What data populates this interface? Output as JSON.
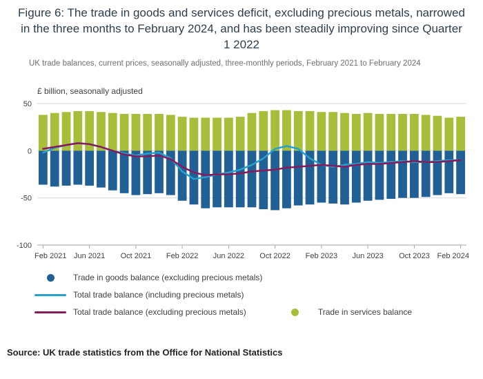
{
  "title": "Figure 6: The trade in goods and services deficit, excluding precious metals, narrowed in the three months to February 2024, and has been steadily improving since Quarter 1 2022",
  "subtitle": "UK trade balances, current prices, seasonally adjusted, three-monthly periods, February 2021 to February 2024",
  "source": "Source: UK trade statistics from the Office for National Statistics",
  "colors": {
    "goods_bar": "#206095",
    "services_bar": "#a8bd3a",
    "total_including": "#27a0cc",
    "total_excluding": "#871a5b",
    "gridline": "#d9d9d9",
    "axis": "#a6a6a6",
    "text": "#414042"
  },
  "legend": [
    {
      "label": "Trade in goods balance (excluding precious metals)",
      "marker": "dot",
      "color": "#206095"
    },
    {
      "label": "Total trade balance (including precious metals)",
      "marker": "line",
      "color": "#27a0cc"
    },
    {
      "label": "Total trade balance (excluding precious metals)",
      "marker": "line",
      "color": "#871a5b"
    },
    {
      "label": "Trade in services balance",
      "marker": "dot",
      "color": "#a8bd3a"
    }
  ],
  "chart_data": {
    "type": "bar",
    "title": "Figure 6: The trade in goods and services deficit, excluding precious metals, narrowed in the three months to February 2024, and has been steadily improving since Quarter 1 2022",
    "ylabel": "£ billion, seasonally adjusted",
    "ylim": [
      -100,
      50
    ],
    "yticks": [
      50,
      0,
      -50,
      -100
    ],
    "grid": "horizontal",
    "legend_position": "bottom",
    "x": [
      "Feb 2021",
      "Mar 2021",
      "Apr 2021",
      "May 2021",
      "Jun 2021",
      "Jul 2021",
      "Aug 2021",
      "Sep 2021",
      "Oct 2021",
      "Nov 2021",
      "Dec 2021",
      "Jan 2022",
      "Feb 2022",
      "Mar 2022",
      "Apr 2022",
      "May 2022",
      "Jun 2022",
      "Jul 2022",
      "Aug 2022",
      "Sep 2022",
      "Oct 2022",
      "Nov 2022",
      "Dec 2022",
      "Jan 2023",
      "Feb 2023",
      "Mar 2023",
      "Apr 2023",
      "May 2023",
      "Jun 2023",
      "Jul 2023",
      "Aug 2023",
      "Sep 2023",
      "Oct 2023",
      "Nov 2023",
      "Dec 2023",
      "Jan 2024",
      "Feb 2024"
    ],
    "x_tick_labels": [
      "Feb 2021",
      "Jun 2021",
      "Oct 2021",
      "Feb 2022",
      "Jun 2022",
      "Oct 2022",
      "Feb 2023",
      "Jun 2023",
      "Oct 2023",
      "Feb 2024"
    ],
    "bar_series": [
      {
        "id": "services",
        "name": "Trade in services balance",
        "color": "#a8bd3a",
        "values": [
          38,
          40,
          41,
          42,
          42,
          41,
          40,
          39,
          39,
          39,
          39,
          38,
          36,
          35,
          35,
          35,
          35,
          36,
          40,
          42,
          43,
          43,
          42,
          42,
          41,
          41,
          40,
          39,
          40,
          39,
          39,
          39,
          39,
          38,
          37,
          35,
          36
        ]
      },
      {
        "id": "goods",
        "name": "Trade in goods balance (excluding precious metals)",
        "color": "#206095",
        "values": [
          -36,
          -38,
          -37,
          -36,
          -37,
          -39,
          -42,
          -45,
          -47,
          -46,
          -45,
          -47,
          -53,
          -57,
          -61,
          -60,
          -60,
          -60,
          -60,
          -62,
          -63,
          -61,
          -58,
          -57,
          -55,
          -56,
          -57,
          -55,
          -53,
          -52,
          -51,
          -50,
          -50,
          -49,
          -47,
          -45,
          -46
        ]
      }
    ],
    "line_series": [
      {
        "id": "total-incl",
        "name": "Total trade balance (including precious metals)",
        "color": "#27a0cc",
        "values": [
          -2,
          3,
          6,
          8,
          7,
          4,
          0,
          -3,
          -5,
          -3,
          -2,
          -8,
          -22,
          -30,
          -28,
          -25,
          -23,
          -20,
          -15,
          -8,
          2,
          5,
          2,
          -8,
          -15,
          -17,
          -15,
          -14,
          -12,
          -13,
          -12,
          -11,
          -12,
          -12,
          -11,
          -10,
          -10
        ]
      },
      {
        "id": "total-excl",
        "name": "Total trade balance (excluding precious metals)",
        "color": "#871a5b",
        "values": [
          2,
          4,
          6,
          8,
          7,
          4,
          0,
          -4,
          -6,
          -6,
          -5,
          -9,
          -17,
          -23,
          -26,
          -25,
          -25,
          -24,
          -22,
          -21,
          -20,
          -18,
          -17,
          -16,
          -15,
          -16,
          -17,
          -15,
          -14,
          -14,
          -13,
          -12,
          -11,
          -12,
          -12,
          -11,
          -10
        ]
      }
    ]
  }
}
